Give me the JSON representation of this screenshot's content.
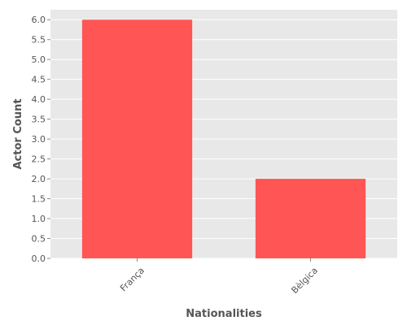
{
  "chart_data": {
    "type": "bar",
    "title": "",
    "xlabel": "Nationalities",
    "ylabel": "Actor Count",
    "categories": [
      "França",
      "Bèlgica"
    ],
    "values": [
      6.0,
      2.0
    ],
    "ylim": [
      0.0,
      6.25
    ],
    "yticks": [
      "0.0",
      "0.5",
      "1.0",
      "1.5",
      "2.0",
      "2.5",
      "3.0",
      "3.5",
      "4.0",
      "4.5",
      "5.0",
      "5.5",
      "6.0"
    ],
    "grid": true,
    "legend": "none",
    "colors": {
      "bar": "#ff5555",
      "panel_background": "#e8e8e8",
      "grid": "#ffffff",
      "text": "#555555"
    }
  }
}
